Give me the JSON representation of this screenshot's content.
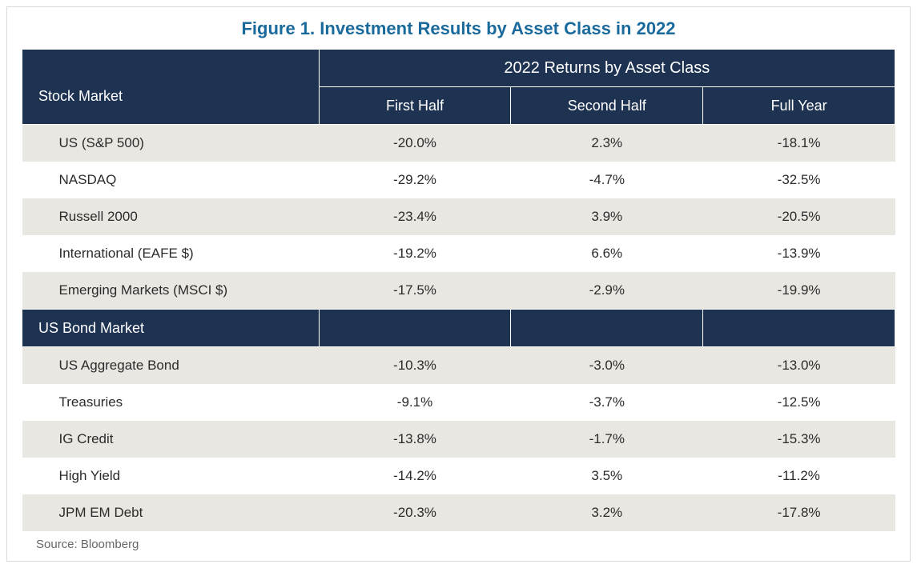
{
  "title": "Figure 1. Investment Results by Asset Class in 2022",
  "title_color": "#1b6a9c",
  "title_fontsize": 22,
  "header_bg": "#1e3252",
  "row_alt_bg": "#e9e7e2",
  "row_bg": "#ffffff",
  "text_color": "#2b2b2b",
  "border_color": "#d9d9d9",
  "columns": {
    "super": "2022 Returns by Asset Class",
    "c1": "First Half",
    "c2": "Second Half",
    "c3": "Full Year"
  },
  "sections": [
    {
      "label": "Stock Market",
      "rows": [
        {
          "label": "US (S&P 500)",
          "c1": "-20.0%",
          "c2": "2.3%",
          "c3": "-18.1%"
        },
        {
          "label": "NASDAQ",
          "c1": "-29.2%",
          "c2": "-4.7%",
          "c3": "-32.5%"
        },
        {
          "label": "Russell 2000",
          "c1": "-23.4%",
          "c2": "3.9%",
          "c3": "-20.5%"
        },
        {
          "label": "International (EAFE $)",
          "c1": "-19.2%",
          "c2": "6.6%",
          "c3": "-13.9%"
        },
        {
          "label": "Emerging Markets (MSCI $)",
          "c1": "-17.5%",
          "c2": "-2.9%",
          "c3": "-19.9%"
        }
      ]
    },
    {
      "label": "US Bond Market",
      "rows": [
        {
          "label": "US Aggregate Bond",
          "c1": "-10.3%",
          "c2": "-3.0%",
          "c3": "-13.0%"
        },
        {
          "label": "Treasuries",
          "c1": "-9.1%",
          "c2": "-3.7%",
          "c3": "-12.5%"
        },
        {
          "label": "IG Credit",
          "c1": "-13.8%",
          "c2": "-1.7%",
          "c3": "-15.3%"
        },
        {
          "label": "High Yield",
          "c1": "-14.2%",
          "c2": "3.5%",
          "c3": "-11.2%"
        },
        {
          "label": "JPM EM Debt",
          "c1": "-20.3%",
          "c2": "3.2%",
          "c3": "-17.8%"
        }
      ]
    }
  ],
  "source": "Source: Bloomberg",
  "col_widths_pct": [
    34,
    22,
    22,
    22
  ]
}
